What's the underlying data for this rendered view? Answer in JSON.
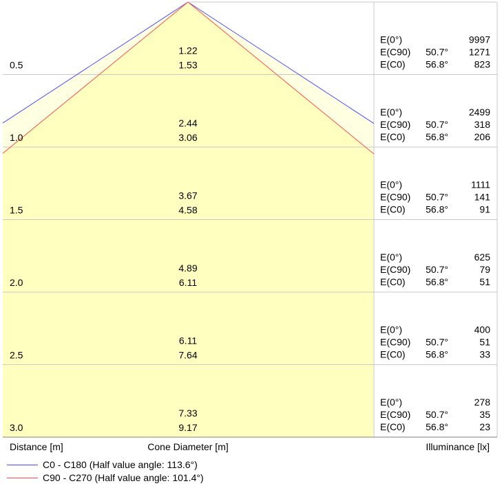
{
  "chart_data": {
    "type": "cone-diagram",
    "columns": {
      "distance": "Distance [m]",
      "diameter": "Cone Diameter [m]",
      "illuminance": "Illuminance [lx]"
    },
    "illuminance_labels": {
      "center": "E(0°)",
      "c90": "E(C90)",
      "c0": "E(C0)"
    },
    "angles": {
      "c90": "50.7°",
      "c0": "56.8°"
    },
    "rows": [
      {
        "distance": "0.5",
        "diameter_c90": "1.22",
        "diameter_c0": "1.53",
        "e0": "9997",
        "e_c90": "1271",
        "e_c0": "823"
      },
      {
        "distance": "1.0",
        "diameter_c90": "2.44",
        "diameter_c0": "3.06",
        "e0": "2499",
        "e_c90": "318",
        "e_c0": "206"
      },
      {
        "distance": "1.5",
        "diameter_c90": "3.67",
        "diameter_c0": "4.58",
        "e0": "1111",
        "e_c90": "141",
        "e_c0": "91"
      },
      {
        "distance": "2.0",
        "diameter_c90": "4.89",
        "diameter_c0": "6.11",
        "e0": "625",
        "e_c90": "79",
        "e_c0": "51"
      },
      {
        "distance": "2.5",
        "diameter_c90": "6.11",
        "diameter_c0": "7.64",
        "e0": "400",
        "e_c90": "51",
        "e_c0": "33"
      },
      {
        "distance": "3.0",
        "diameter_c90": "7.33",
        "diameter_c0": "9.17",
        "e0": "278",
        "e_c90": "35",
        "e_c0": "23"
      }
    ],
    "half_value_angles": [
      {
        "label": "C0 - C180 (Half value angle: 113.6°)",
        "angle": 113.6,
        "color": "#4b4bff"
      },
      {
        "label": "C90 - C270 (Half value angle: 101.4°)",
        "angle": 101.4,
        "color": "#ff4b4b"
      }
    ],
    "colors": {
      "cone_fill": "#ffffc0",
      "cone_fill_outer": "#ffffe2",
      "grid": "#c8c8c8",
      "frame": "#808080"
    }
  }
}
